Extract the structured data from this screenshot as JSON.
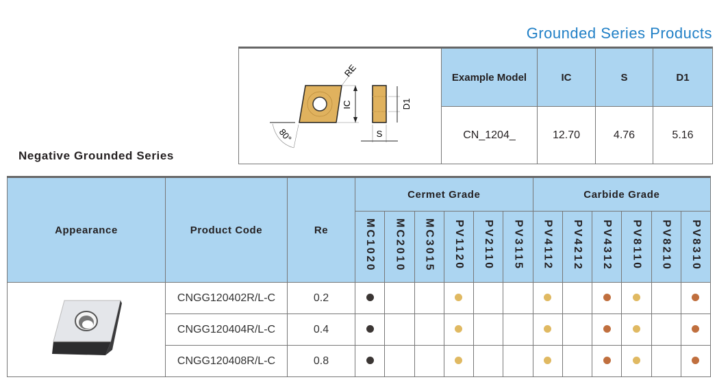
{
  "header": {
    "title": "Grounded Series Products"
  },
  "spec_table": {
    "diagram_labels": {
      "re": "RE",
      "ic": "IC",
      "d1": "D1",
      "s": "S",
      "angle": "80°"
    },
    "columns": [
      "Example Model",
      "IC",
      "S",
      "D1"
    ],
    "row": [
      "CN_1204_",
      "12.70",
      "4.76",
      "5.16"
    ]
  },
  "section_title": "Negative Grounded Series",
  "grade_table": {
    "headers": {
      "appearance": "Appearance",
      "product_code": "Product Code",
      "re": "Re",
      "cermet": "Cermet Grade",
      "carbide": "Carbide Grade"
    },
    "grades": [
      "MC1020",
      "MC2010",
      "MC3015",
      "PV1120",
      "PV2110",
      "PV3115",
      "PV4112",
      "PV4212",
      "PV4312",
      "PV8110",
      "PV8210",
      "PV8310"
    ],
    "colors": {
      "black": "#3b3634",
      "yellow": "#e0b962",
      "brown": "#c06f3e"
    },
    "rows": [
      {
        "code": "CNGG120402R/L-C",
        "re": "0.2",
        "marks": [
          "black",
          "",
          "",
          "yellow",
          "",
          "",
          "yellow",
          "",
          "brown",
          "yellow",
          "",
          "brown"
        ]
      },
      {
        "code": "CNGG120404R/L-C",
        "re": "0.4",
        "marks": [
          "black",
          "",
          "",
          "yellow",
          "",
          "",
          "yellow",
          "",
          "brown",
          "yellow",
          "",
          "brown"
        ]
      },
      {
        "code": "CNGG120408R/L-C",
        "re": "0.8",
        "marks": [
          "black",
          "",
          "",
          "yellow",
          "",
          "",
          "yellow",
          "",
          "brown",
          "yellow",
          "",
          "brown"
        ]
      }
    ]
  }
}
